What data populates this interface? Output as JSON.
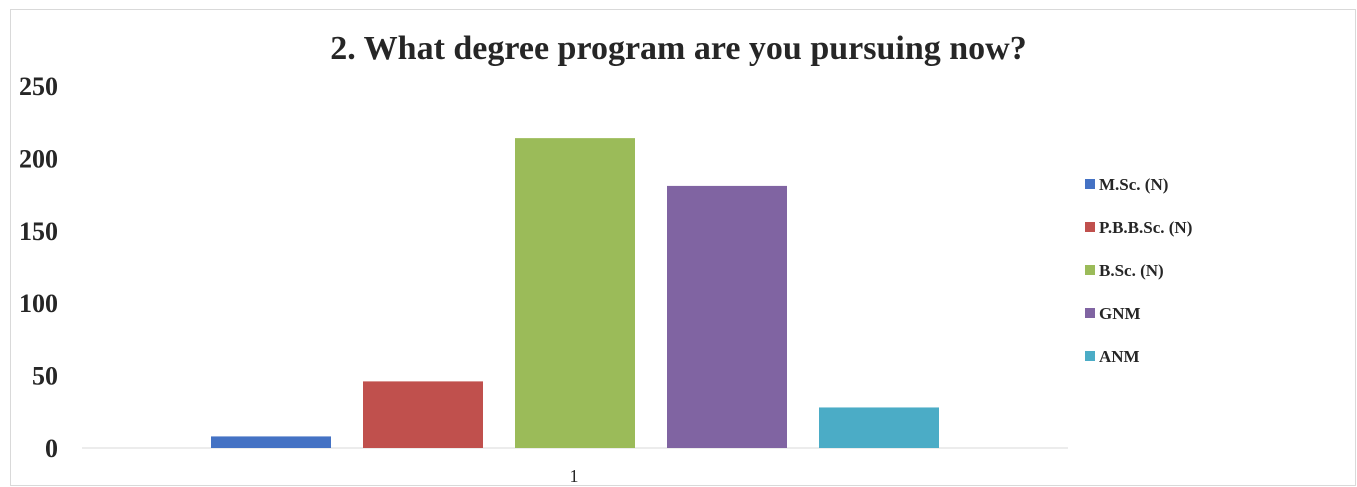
{
  "chart_data": {
    "type": "bar",
    "title": "2. What degree program are you pursuing now?",
    "categories": [
      "1"
    ],
    "series": [
      {
        "name": "M.Sc. (N)",
        "values": [
          8
        ],
        "color": "#4472C4"
      },
      {
        "name": "P.B.B.Sc. (N)",
        "values": [
          46
        ],
        "color": "#C0504D"
      },
      {
        "name": "B.Sc. (N)",
        "values": [
          214
        ],
        "color": "#9BBB59"
      },
      {
        "name": "GNM",
        "values": [
          181
        ],
        "color": "#8064A2"
      },
      {
        "name": "ANM",
        "values": [
          28
        ],
        "color": "#4BACC6"
      }
    ],
    "xlabel": "",
    "ylabel": "",
    "ylim": [
      0,
      250
    ],
    "yticks": [
      0,
      50,
      100,
      150,
      200,
      250
    ],
    "grid": false,
    "legend": "right"
  }
}
